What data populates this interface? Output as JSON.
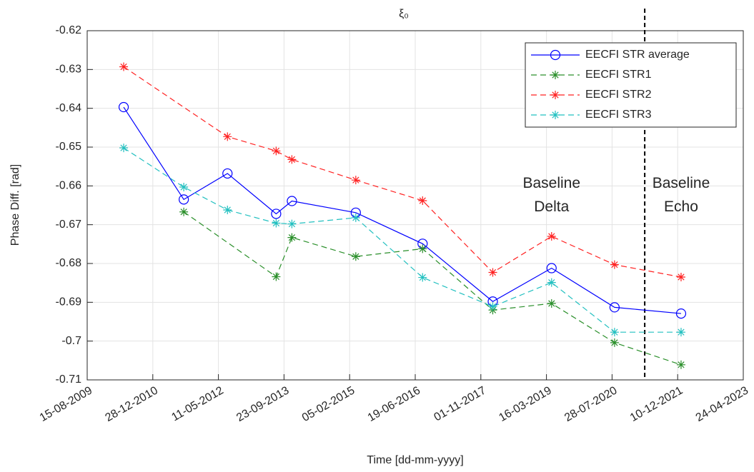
{
  "chart_data": {
    "type": "line",
    "title": "ξ₀",
    "xlabel": "Time [dd-mm-yyyy]",
    "ylabel": "Phase Diff. [rad]",
    "xlim": [
      "15-08-2009",
      "24-04-2023"
    ],
    "xticks": [
      "15-08-2009",
      "28-12-2010",
      "11-05-2012",
      "23-09-2013",
      "05-02-2015",
      "19-06-2016",
      "01-11-2017",
      "16-03-2019",
      "28-07-2020",
      "10-12-2021",
      "24-04-2023"
    ],
    "ylim": [
      -0.71,
      -0.62
    ],
    "yticks": [
      -0.71,
      -0.7,
      -0.69,
      -0.68,
      -0.67,
      -0.66,
      -0.65,
      -0.64,
      -0.63,
      -0.62
    ],
    "grid": true,
    "legend": "upper right",
    "series": [
      {
        "name": "EECFI STR average",
        "color": "#0000ff",
        "dash": "solid",
        "marker": "circle",
        "x": [
          "2010-05-20",
          "2011-08-21",
          "2012-07-19",
          "2013-07-25",
          "2013-11-22",
          "2015-03-24",
          "2016-08-14",
          "2018-01-31",
          "2019-04-24",
          "2020-08-16",
          "2022-01-05"
        ],
        "values": [
          -0.6397,
          -0.6635,
          -0.6568,
          -0.6672,
          -0.6639,
          -0.6669,
          -0.6749,
          -0.6898,
          -0.6812,
          -0.6913,
          -0.6929
        ]
      },
      {
        "name": "EECFI STR1",
        "color": "#2a8f2a",
        "dash": "dashed",
        "marker": "asterisk",
        "x": [
          "2011-08-21",
          "2013-07-25",
          "2013-11-22",
          "2015-03-24",
          "2016-08-14",
          "2018-01-31",
          "2019-04-24",
          "2020-08-16",
          "2022-01-05"
        ],
        "values": [
          -0.6667,
          -0.6834,
          -0.6733,
          -0.6782,
          -0.6762,
          -0.692,
          -0.6903,
          -0.7004,
          -0.7061
        ]
      },
      {
        "name": "EECFI STR2",
        "color": "#ff2222",
        "dash": "dashed",
        "marker": "asterisk",
        "x": [
          "2010-05-20",
          "2012-07-19",
          "2013-07-25",
          "2013-11-22",
          "2015-03-24",
          "2016-08-14",
          "2018-01-31",
          "2019-04-24",
          "2020-08-16",
          "2022-01-05"
        ],
        "values": [
          -0.6293,
          -0.6473,
          -0.651,
          -0.6532,
          -0.6585,
          -0.6638,
          -0.6823,
          -0.673,
          -0.6803,
          -0.6835
        ]
      },
      {
        "name": "EECFI STR3",
        "color": "#22c0c0",
        "dash": "dashed",
        "marker": "asterisk",
        "x": [
          "2010-05-20",
          "2011-08-21",
          "2012-07-19",
          "2013-07-25",
          "2013-11-22",
          "2015-03-24",
          "2016-08-14",
          "2018-01-31",
          "2019-04-24",
          "2020-08-16",
          "2022-01-05"
        ],
        "values": [
          -0.6502,
          -0.6603,
          -0.6662,
          -0.6696,
          -0.6698,
          -0.6682,
          -0.6836,
          -0.6911,
          -0.6849,
          -0.6977,
          -0.6977
        ]
      }
    ],
    "vline": {
      "x": "2021-04-03",
      "color": "#000000"
    },
    "annotations": [
      {
        "lines": [
          "Baseline",
          "Delta"
        ],
        "x": "2019-04-24",
        "y": -0.6625
      },
      {
        "lines": [
          "Baseline",
          "Echo"
        ],
        "x": "2022-01-05",
        "y": -0.6625
      }
    ]
  }
}
